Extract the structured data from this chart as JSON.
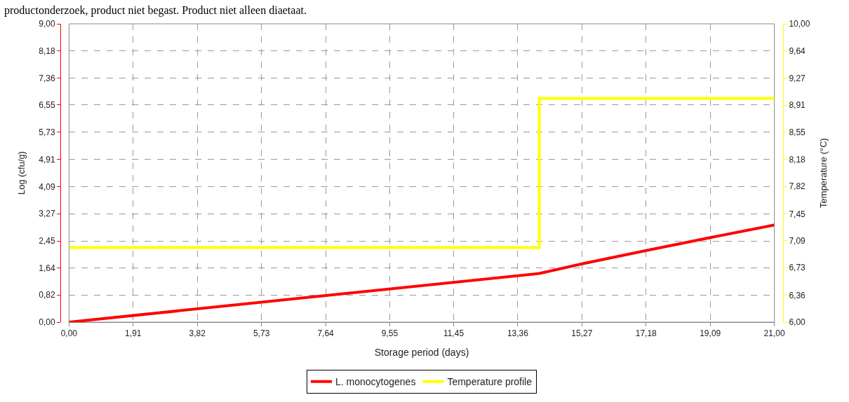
{
  "chart_data": {
    "type": "line",
    "annotations": [
      "productonderzoek, product niet begast. Product niet alleen diaetaat."
    ],
    "xlabel": "Storage period (days)",
    "ylabel": "Log (cfu/g)",
    "y2label": "Temperature (°C)",
    "series": [
      {
        "name": "L. monocytogenes",
        "color": "#ff0000",
        "x": [
          0,
          14,
          15.27,
          17.18,
          19.09,
          21
        ],
        "values": [
          0,
          1.47,
          1.76,
          2.16,
          2.55,
          2.93
        ]
      },
      {
        "name": "Temperature profile",
        "color": "#ffff00",
        "type": "step",
        "axis": "y2",
        "x": [
          0,
          14,
          21
        ],
        "values": [
          7,
          9,
          9
        ]
      }
    ],
    "xlim": [
      0,
      21
    ],
    "xticks": [
      {
        "value": 0,
        "label": "0,00"
      },
      {
        "value": 1.91,
        "label": "1,91"
      },
      {
        "value": 3.82,
        "label": "3,82"
      },
      {
        "value": 5.73,
        "label": "5,73"
      },
      {
        "value": 7.64,
        "label": "7,64"
      },
      {
        "value": 9.55,
        "label": "9,55"
      },
      {
        "value": 11.45,
        "label": "11,45"
      },
      {
        "value": 13.36,
        "label": "13,36"
      },
      {
        "value": 15.27,
        "label": "15,27"
      },
      {
        "value": 17.18,
        "label": "17,18"
      },
      {
        "value": 19.09,
        "label": "19,09"
      },
      {
        "value": 21,
        "label": "21,00"
      }
    ],
    "ylim": [
      0,
      9
    ],
    "yticks": [
      {
        "value": 0,
        "label": "0,00"
      },
      {
        "value": 0.82,
        "label": "0,82"
      },
      {
        "value": 1.64,
        "label": "1,64"
      },
      {
        "value": 2.45,
        "label": "2,45"
      },
      {
        "value": 3.27,
        "label": "3,27"
      },
      {
        "value": 4.09,
        "label": "4,09"
      },
      {
        "value": 4.91,
        "label": "4,91"
      },
      {
        "value": 5.73,
        "label": "5,73"
      },
      {
        "value": 6.55,
        "label": "6,55"
      },
      {
        "value": 7.36,
        "label": "7,36"
      },
      {
        "value": 8.18,
        "label": "8,18"
      },
      {
        "value": 9,
        "label": "9,00"
      }
    ],
    "y2lim": [
      6,
      10
    ],
    "y2ticks": [
      {
        "value": 6,
        "label": "6,00"
      },
      {
        "value": 6.36,
        "label": "6,36"
      },
      {
        "value": 6.73,
        "label": "6,73"
      },
      {
        "value": 7.09,
        "label": "7,09"
      },
      {
        "value": 7.45,
        "label": "7,45"
      },
      {
        "value": 7.82,
        "label": "7,82"
      },
      {
        "value": 8.18,
        "label": "8,18"
      },
      {
        "value": 8.55,
        "label": "8,55"
      },
      {
        "value": 8.91,
        "label": "8,91"
      },
      {
        "value": 9.27,
        "label": "9,27"
      },
      {
        "value": 9.64,
        "label": "9,64"
      },
      {
        "value": 10,
        "label": "10,00"
      }
    ],
    "grid": true,
    "legend": "bottom",
    "line_style": "solid",
    "marker": "none"
  }
}
